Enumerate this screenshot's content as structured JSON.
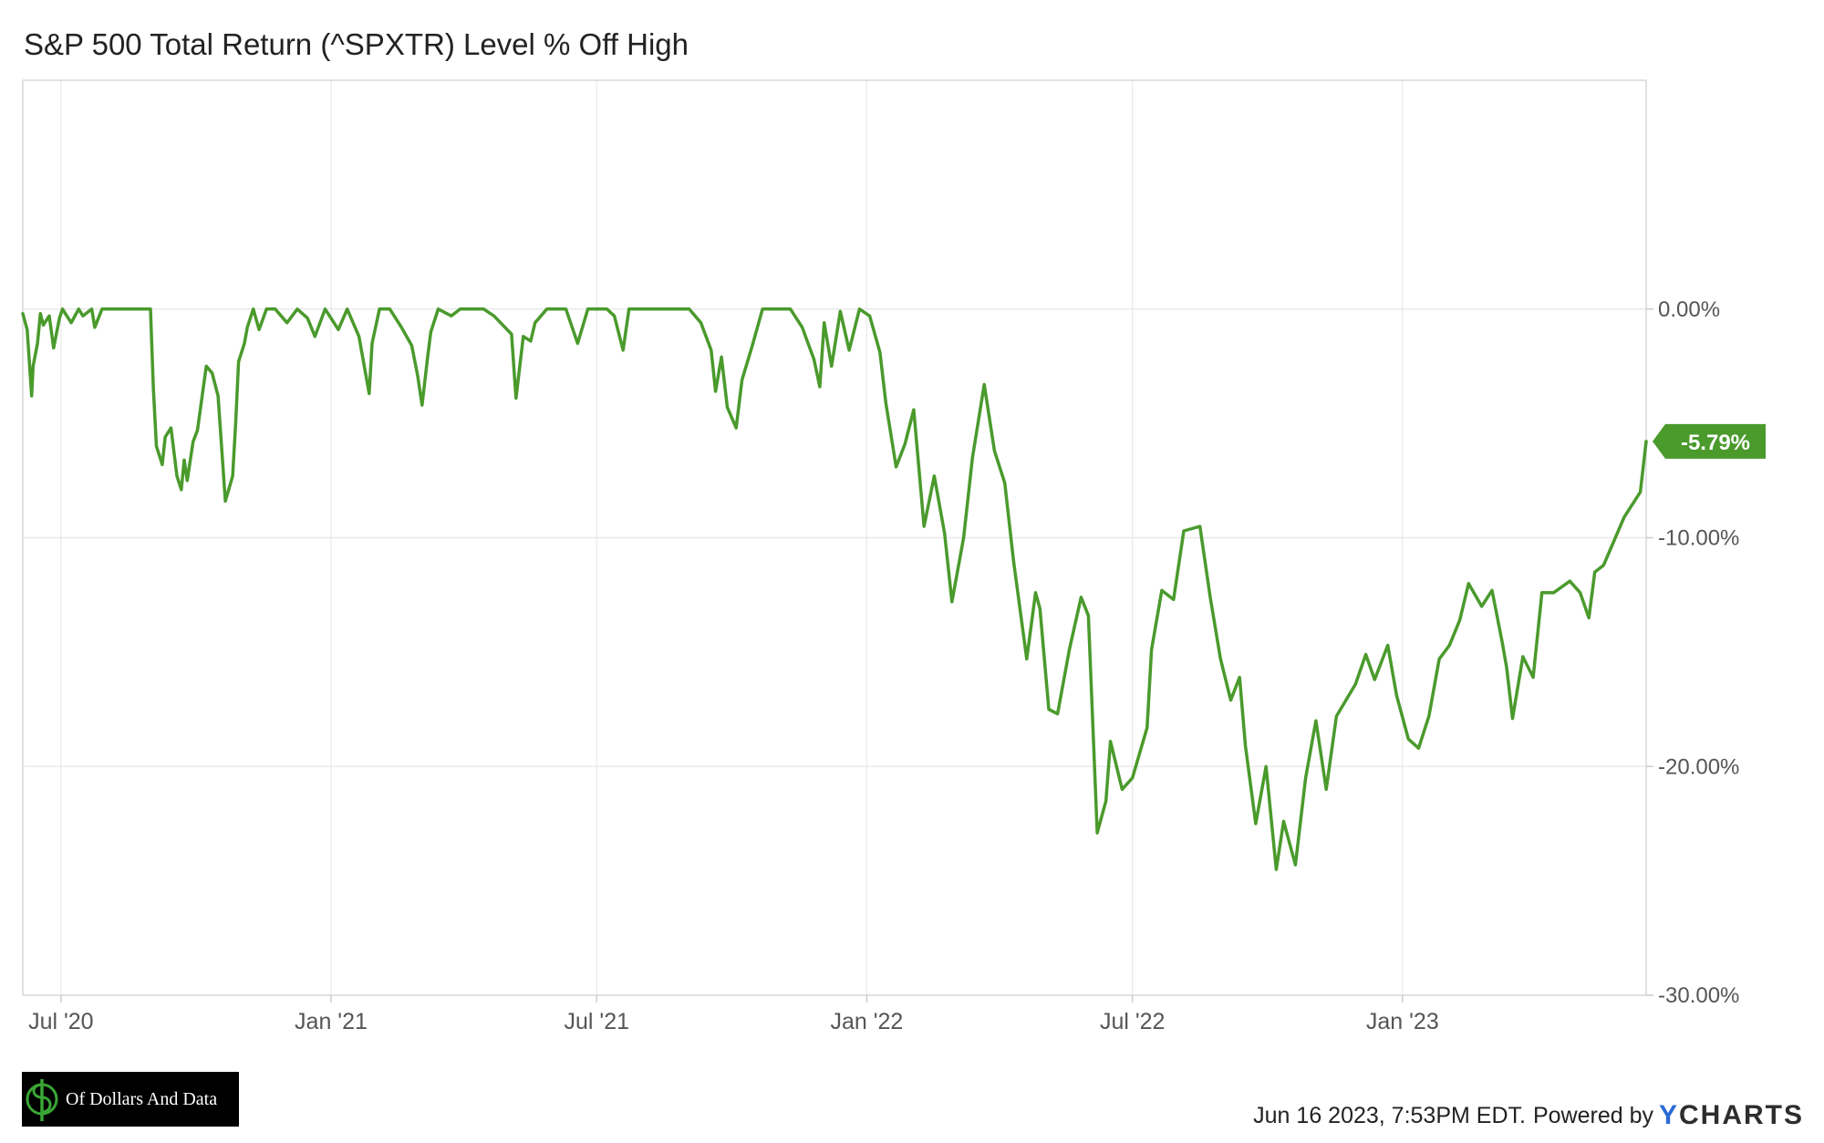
{
  "chart_data": {
    "type": "line",
    "title": "S&P 500 Total Return (^SPXTR) Level % Off High",
    "xlabel": "",
    "ylabel": "",
    "x_tick_labels": [
      "Jul '20",
      "Jan '21",
      "Jul '21",
      "Jan '22",
      "Jul '22",
      "Jan '23"
    ],
    "x_tick_dates": [
      "2020-07-01",
      "2021-01-01",
      "2021-07-01",
      "2022-01-01",
      "2022-07-01",
      "2023-01-01"
    ],
    "y_tick_labels": [
      "0.00%",
      "-10.00%",
      "-20.00%",
      "-30.00%"
    ],
    "y_ticks": [
      0,
      -10,
      -20,
      -30
    ],
    "ylim": [
      -30,
      10
    ],
    "xlim": [
      "2020-06-05",
      "2023-06-16"
    ],
    "grid": true,
    "line_color": "#4a9a2c",
    "last_value_label": "-5.79%",
    "series": [
      {
        "x": [
          "2020-06-05",
          "2020-06-08",
          "2020-06-11",
          "2020-06-12",
          "2020-06-15",
          "2020-06-17",
          "2020-06-19",
          "2020-06-23",
          "2020-06-26",
          "2020-06-30",
          "2020-07-02",
          "2020-07-08",
          "2020-07-13",
          "2020-07-16",
          "2020-07-22",
          "2020-07-24",
          "2020-07-29",
          "2020-08-05",
          "2020-08-10",
          "2020-08-18",
          "2020-08-25",
          "2020-08-31",
          "2020-09-02",
          "2020-09-04",
          "2020-09-08",
          "2020-09-10",
          "2020-09-14",
          "2020-09-18",
          "2020-09-21",
          "2020-09-23",
          "2020-09-25",
          "2020-09-29",
          "2020-10-02",
          "2020-10-08",
          "2020-10-12",
          "2020-10-16",
          "2020-10-21",
          "2020-10-26",
          "2020-10-28",
          "2020-10-30",
          "2020-11-03",
          "2020-11-05",
          "2020-11-09",
          "2020-11-13",
          "2020-11-18",
          "2020-11-24",
          "2020-12-02",
          "2020-12-09",
          "2020-12-16",
          "2020-12-21",
          "2020-12-28",
          "2021-01-06",
          "2021-01-12",
          "2021-01-20",
          "2021-01-27",
          "2021-01-29",
          "2021-02-03",
          "2021-02-10",
          "2021-02-18",
          "2021-02-25",
          "2021-03-01",
          "2021-03-04",
          "2021-03-08",
          "2021-03-10",
          "2021-03-15",
          "2021-03-24",
          "2021-03-30",
          "2021-04-08",
          "2021-04-15",
          "2021-04-22",
          "2021-05-04",
          "2021-05-07",
          "2021-05-12",
          "2021-05-17",
          "2021-05-20",
          "2021-05-28",
          "2021-06-10",
          "2021-06-18",
          "2021-06-25",
          "2021-07-08",
          "2021-07-13",
          "2021-07-19",
          "2021-07-23",
          "2021-08-05",
          "2021-08-16",
          "2021-08-20",
          "2021-08-27",
          "2021-09-02",
          "2021-09-10",
          "2021-09-17",
          "2021-09-20",
          "2021-09-24",
          "2021-09-28",
          "2021-10-04",
          "2021-10-08",
          "2021-10-15",
          "2021-10-22",
          "2021-11-01",
          "2021-11-10",
          "2021-11-18",
          "2021-11-26",
          "2021-11-30",
          "2021-12-03",
          "2021-12-08",
          "2021-12-14",
          "2021-12-20",
          "2021-12-27",
          "2022-01-03",
          "2022-01-10",
          "2022-01-14",
          "2022-01-21",
          "2022-01-27",
          "2022-02-02",
          "2022-02-09",
          "2022-02-16",
          "2022-02-23",
          "2022-02-28",
          "2022-03-08",
          "2022-03-14",
          "2022-03-22",
          "2022-03-29",
          "2022-04-05",
          "2022-04-11",
          "2022-04-20",
          "2022-04-26",
          "2022-04-29",
          "2022-05-05",
          "2022-05-11",
          "2022-05-19",
          "2022-05-27",
          "2022-06-01",
          "2022-06-07",
          "2022-06-13",
          "2022-06-16",
          "2022-06-24",
          "2022-07-01",
          "2022-07-11",
          "2022-07-14",
          "2022-07-21",
          "2022-07-29",
          "2022-08-05",
          "2022-08-16",
          "2022-08-23",
          "2022-08-30",
          "2022-09-06",
          "2022-09-12",
          "2022-09-16",
          "2022-09-23",
          "2022-09-30",
          "2022-10-07",
          "2022-10-12",
          "2022-10-20",
          "2022-10-27",
          "2022-11-03",
          "2022-11-10",
          "2022-11-17",
          "2022-11-30",
          "2022-12-07",
          "2022-12-13",
          "2022-12-22",
          "2022-12-28",
          "2023-01-05",
          "2023-01-12",
          "2023-01-19",
          "2023-01-26",
          "2023-02-02",
          "2023-02-09",
          "2023-02-15",
          "2023-02-24",
          "2023-03-03",
          "2023-03-10",
          "2023-03-13",
          "2023-03-17",
          "2023-03-24",
          "2023-03-31",
          "2023-04-06",
          "2023-04-14",
          "2023-04-25",
          "2023-05-02",
          "2023-05-08",
          "2023-05-12",
          "2023-05-18",
          "2023-05-24",
          "2023-06-01",
          "2023-06-06",
          "2023-06-12",
          "2023-06-16"
        ],
        "values": [
          -0.2,
          -0.9,
          -3.8,
          -2.5,
          -1.5,
          -0.2,
          -0.7,
          -0.3,
          -1.7,
          -0.4,
          0.0,
          -0.6,
          0.0,
          -0.3,
          0.0,
          -0.8,
          0.0,
          0.0,
          0.0,
          0.0,
          0.0,
          0.0,
          -3.5,
          -6.0,
          -6.8,
          -5.6,
          -5.2,
          -7.3,
          -7.9,
          -6.6,
          -7.5,
          -5.8,
          -5.3,
          -2.5,
          -2.8,
          -3.8,
          -8.4,
          -7.3,
          -5.0,
          -2.3,
          -1.5,
          -0.8,
          0.0,
          -0.9,
          0.0,
          0.0,
          -0.6,
          0.0,
          -0.4,
          -1.2,
          0.0,
          -0.9,
          0.0,
          -1.2,
          -3.7,
          -1.5,
          0.0,
          0.0,
          -0.8,
          -1.6,
          -2.9,
          -4.2,
          -2.0,
          -1.0,
          0.0,
          -0.3,
          0.0,
          0.0,
          0.0,
          -0.3,
          -1.1,
          -3.9,
          -1.2,
          -1.4,
          -0.6,
          0.0,
          0.0,
          -1.5,
          0.0,
          0.0,
          -0.3,
          -1.8,
          0.0,
          0.0,
          0.0,
          0.0,
          0.0,
          0.0,
          -0.6,
          -1.8,
          -3.6,
          -2.1,
          -4.3,
          -5.2,
          -3.1,
          -1.6,
          0.0,
          0.0,
          0.0,
          -0.8,
          -2.2,
          -3.4,
          -0.6,
          -2.5,
          -0.1,
          -1.8,
          0.0,
          -0.3,
          -1.9,
          -4.1,
          -6.9,
          -5.9,
          -4.4,
          -9.5,
          -7.3,
          -9.8,
          -12.8,
          -10.0,
          -6.5,
          -3.3,
          -6.2,
          -7.6,
          -11.0,
          -15.3,
          -12.4,
          -13.1,
          -17.5,
          -17.7,
          -14.9,
          -12.6,
          -13.4,
          -22.9,
          -21.5,
          -18.9,
          -21.0,
          -20.5,
          -18.3,
          -14.9,
          -12.3,
          -12.7,
          -9.7,
          -9.5,
          -12.6,
          -15.3,
          -17.1,
          -16.1,
          -19.1,
          -22.5,
          -20.0,
          -24.5,
          -22.4,
          -24.3,
          -20.5,
          -18.0,
          -21.0,
          -17.8,
          -16.4,
          -15.1,
          -16.2,
          -14.7,
          -16.9,
          -18.8,
          -19.2,
          -17.8,
          -15.3,
          -14.7,
          -13.6,
          -12.0,
          -13.0,
          -12.3,
          -14.6,
          -15.7,
          -17.9,
          -15.2,
          -16.1,
          -12.4,
          -12.4,
          -11.9,
          -12.4,
          -13.5,
          -11.5,
          -11.2,
          -10.3,
          -9.1,
          -8.6,
          -8.0,
          -5.79
        ]
      }
    ]
  },
  "branding": {
    "logo_text": "Of Dollars And Data",
    "footer_timestamp": "Jun 16 2023, 7:53PM EDT.",
    "footer_powered": "Powered by",
    "brand_y": "Y",
    "brand_rest": "CHARTS",
    "brand_color": "#2a6ad6"
  }
}
